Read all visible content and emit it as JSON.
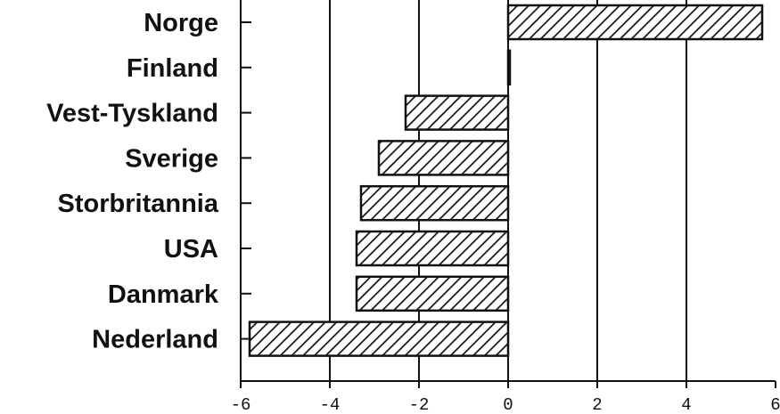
{
  "chart_data": {
    "type": "bar",
    "orientation": "horizontal",
    "categories": [
      "Norge",
      "Finland",
      "Vest-Tyskland",
      "Sverige",
      "Storbritannia",
      "USA",
      "Danmark",
      "Nederland"
    ],
    "values": [
      5.7,
      0.0,
      -2.3,
      -2.9,
      -3.3,
      -3.4,
      -3.4,
      -5.8
    ],
    "xlim": [
      -6,
      6
    ],
    "xticks": [
      -6,
      -4,
      -2,
      0,
      2,
      4,
      6
    ],
    "xtick_labels": [
      "-6",
      "-4",
      "-2",
      "0",
      "2",
      "4",
      "6"
    ],
    "grid": true,
    "bar_fill": "diagonal-hatch",
    "colors": {
      "ink": "#111111",
      "background": "#ffffff"
    }
  }
}
